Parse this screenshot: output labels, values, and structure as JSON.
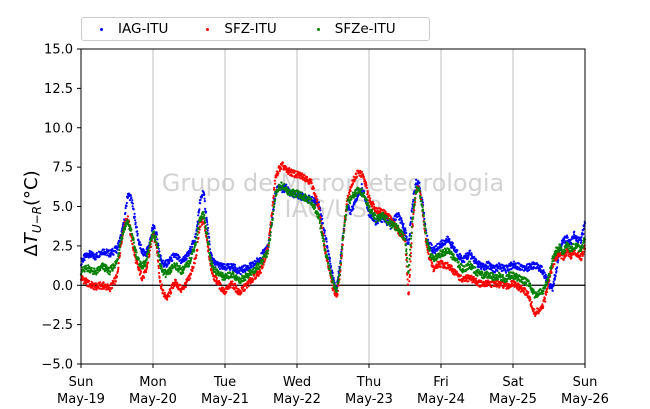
{
  "chart_data": {
    "type": "scatter",
    "title": "",
    "xlabel": "",
    "ylabel": "ΔT_{U−R}(°C)",
    "ylabel_parts": {
      "delta": "Δ",
      "t": "T",
      "sub": "U−R",
      "unit": "(°C)"
    },
    "ylim": [
      -5.0,
      15.0
    ],
    "yticks": [
      "−5.0",
      "−2.5",
      "0.0",
      "2.5",
      "5.0",
      "7.5",
      "10.0",
      "12.5",
      "15.0"
    ],
    "xlim": [
      "2019-05-19",
      "2019-05-26"
    ],
    "xticks": [
      {
        "day": "Sun",
        "date": "May-19"
      },
      {
        "day": "Mon",
        "date": "May-20"
      },
      {
        "day": "Tue",
        "date": "May-21"
      },
      {
        "day": "Wed",
        "date": "May-22"
      },
      {
        "day": "Thu",
        "date": "May-23"
      },
      {
        "day": "Fri",
        "date": "May-24"
      },
      {
        "day": "Sat",
        "date": "May-25"
      },
      {
        "day": "Sun",
        "date": "May-26"
      }
    ],
    "grid": "vertical",
    "zero_line": 0,
    "legend": "top-left, outside, 3 columns",
    "series": [
      {
        "name": "IAG-ITU",
        "color": "#0000ff",
        "x": [
          0.0,
          0.1,
          0.2,
          0.3,
          0.4,
          0.5,
          0.55,
          0.6,
          0.65,
          0.7,
          0.75,
          0.8,
          0.85,
          0.9,
          0.95,
          1.0,
          1.05,
          1.1,
          1.15,
          1.2,
          1.3,
          1.4,
          1.5,
          1.6,
          1.65,
          1.7,
          1.75,
          1.8,
          1.85,
          1.9,
          1.95,
          2.0,
          2.1,
          2.2,
          2.3,
          2.4,
          2.5,
          2.6,
          2.65,
          2.7,
          2.75,
          2.8,
          2.85,
          2.9,
          3.0,
          3.1,
          3.2,
          3.3,
          3.4,
          3.5,
          3.55,
          3.6,
          3.65,
          3.7,
          3.75,
          3.8,
          3.85,
          3.9,
          3.95,
          4.0,
          4.1,
          4.2,
          4.3,
          4.4,
          4.5,
          4.55,
          4.6,
          4.65,
          4.7,
          4.75,
          4.8,
          4.85,
          4.9,
          4.95,
          5.0,
          5.1,
          5.2,
          5.3,
          5.4,
          5.5,
          5.6,
          5.65,
          5.7,
          5.75,
          5.8,
          5.85,
          5.9,
          5.95,
          6.0,
          6.1,
          6.2,
          6.3,
          6.4,
          6.45,
          6.5,
          6.55,
          6.6,
          6.65,
          6.7,
          6.75,
          6.8,
          6.85,
          6.9,
          6.95,
          7.0
        ],
        "y": [
          1.5,
          2.0,
          1.8,
          2.2,
          2.0,
          2.3,
          3.0,
          4.0,
          5.8,
          5.5,
          4.2,
          2.8,
          2.1,
          2.0,
          2.6,
          3.7,
          3.2,
          1.8,
          1.3,
          1.4,
          1.9,
          1.5,
          2.0,
          3.2,
          5.2,
          6.0,
          4.0,
          2.0,
          1.4,
          1.3,
          1.2,
          1.1,
          1.2,
          0.9,
          1.1,
          1.3,
          1.8,
          2.5,
          4.0,
          5.8,
          6.3,
          6.0,
          6.2,
          5.9,
          5.7,
          5.6,
          5.4,
          5.2,
          3.0,
          0.5,
          -0.2,
          1.5,
          3.5,
          5.0,
          4.6,
          5.2,
          5.8,
          6.2,
          5.5,
          4.6,
          4.0,
          4.3,
          3.8,
          4.5,
          3.5,
          2.5,
          5.0,
          6.5,
          6.3,
          5.0,
          3.0,
          2.5,
          2.2,
          2.4,
          2.6,
          2.9,
          2.2,
          1.6,
          2.0,
          1.4,
          1.1,
          1.3,
          1.2,
          1.0,
          1.2,
          1.1,
          1.0,
          1.2,
          1.3,
          1.2,
          1.1,
          1.3,
          1.0,
          0.5,
          0.1,
          -0.2,
          1.0,
          2.4,
          2.8,
          3.0,
          2.6,
          3.2,
          2.8,
          2.9,
          4.0
        ]
      },
      {
        "name": "SFZ-ITU",
        "color": "#ff0000",
        "x": [
          0.0,
          0.1,
          0.2,
          0.3,
          0.4,
          0.5,
          0.55,
          0.6,
          0.65,
          0.7,
          0.75,
          0.8,
          0.85,
          0.9,
          0.95,
          1.0,
          1.05,
          1.1,
          1.15,
          1.2,
          1.3,
          1.4,
          1.5,
          1.6,
          1.65,
          1.7,
          1.75,
          1.8,
          1.85,
          1.9,
          1.95,
          2.0,
          2.1,
          2.2,
          2.3,
          2.4,
          2.5,
          2.6,
          2.65,
          2.7,
          2.75,
          2.8,
          2.85,
          2.9,
          3.0,
          3.1,
          3.2,
          3.3,
          3.4,
          3.5,
          3.55,
          3.6,
          3.65,
          3.7,
          3.75,
          3.8,
          3.85,
          3.9,
          3.95,
          4.0,
          4.1,
          4.2,
          4.3,
          4.4,
          4.5,
          4.55,
          4.6,
          4.65,
          4.7,
          4.75,
          4.8,
          4.85,
          4.9,
          4.95,
          5.0,
          5.1,
          5.2,
          5.3,
          5.4,
          5.5,
          5.6,
          5.65,
          5.7,
          5.75,
          5.8,
          5.85,
          5.9,
          5.95,
          6.0,
          6.1,
          6.2,
          6.3,
          6.4,
          6.45,
          6.5,
          6.55,
          6.6,
          6.65,
          6.7,
          6.75,
          6.8,
          6.85,
          6.9,
          6.95,
          7.0
        ],
        "y": [
          0.5,
          0.1,
          -0.1,
          0.0,
          -0.2,
          0.5,
          2.5,
          3.8,
          4.3,
          3.0,
          1.8,
          1.0,
          0.5,
          0.8,
          2.0,
          3.4,
          2.5,
          0.2,
          -0.6,
          -0.8,
          0.2,
          -0.3,
          0.4,
          1.8,
          3.8,
          4.2,
          2.8,
          1.2,
          0.5,
          0.2,
          -0.2,
          -0.4,
          0.1,
          -0.5,
          0.0,
          0.5,
          1.0,
          2.4,
          4.5,
          6.8,
          7.4,
          7.6,
          7.3,
          7.2,
          7.0,
          6.9,
          6.5,
          5.0,
          2.0,
          -0.2,
          -0.8,
          0.8,
          3.5,
          5.5,
          6.3,
          6.8,
          7.2,
          7.0,
          6.5,
          5.5,
          4.8,
          4.6,
          4.2,
          3.5,
          3.0,
          -0.8,
          3.5,
          6.0,
          6.2,
          4.5,
          2.5,
          1.6,
          1.0,
          1.3,
          1.4,
          1.2,
          0.8,
          0.3,
          0.5,
          0.2,
          0.0,
          0.2,
          0.1,
          0.2,
          0.0,
          0.1,
          -0.1,
          0.0,
          0.1,
          -0.2,
          -0.5,
          -1.8,
          -1.5,
          -0.8,
          0.5,
          1.2,
          1.8,
          2.0,
          1.8,
          2.2,
          1.9,
          2.1,
          2.0,
          1.8,
          2.5
        ]
      },
      {
        "name": "SFZe-ITU",
        "color": "#008000",
        "x": [
          0.0,
          0.1,
          0.2,
          0.3,
          0.4,
          0.5,
          0.55,
          0.6,
          0.65,
          0.7,
          0.75,
          0.8,
          0.85,
          0.9,
          0.95,
          1.0,
          1.05,
          1.1,
          1.15,
          1.2,
          1.3,
          1.4,
          1.5,
          1.6,
          1.65,
          1.7,
          1.75,
          1.8,
          1.85,
          1.9,
          1.95,
          2.0,
          2.1,
          2.2,
          2.3,
          2.4,
          2.5,
          2.6,
          2.65,
          2.7,
          2.75,
          2.8,
          2.85,
          2.9,
          3.0,
          3.1,
          3.2,
          3.3,
          3.4,
          3.5,
          3.55,
          3.6,
          3.65,
          3.7,
          3.75,
          3.8,
          3.85,
          3.9,
          3.95,
          4.0,
          4.1,
          4.2,
          4.3,
          4.4,
          4.5,
          4.55,
          4.6,
          4.65,
          4.7,
          4.75,
          4.8,
          4.85,
          4.9,
          4.95,
          5.0,
          5.1,
          5.2,
          5.3,
          5.4,
          5.5,
          5.6,
          5.65,
          5.7,
          5.75,
          5.8,
          5.85,
          5.9,
          5.95,
          6.0,
          6.1,
          6.2,
          6.3,
          6.4,
          6.45,
          6.5,
          6.55,
          6.6,
          6.65,
          6.7,
          6.75,
          6.8,
          6.85,
          6.9,
          6.95,
          7.0
        ],
        "y": [
          0.9,
          1.1,
          0.8,
          1.2,
          0.9,
          1.5,
          2.8,
          3.6,
          4.0,
          3.4,
          2.3,
          1.5,
          1.2,
          1.4,
          2.4,
          3.4,
          2.8,
          1.2,
          0.8,
          0.7,
          1.3,
          0.9,
          1.4,
          2.8,
          4.2,
          4.6,
          3.2,
          1.6,
          1.0,
          0.8,
          0.6,
          0.5,
          0.7,
          0.3,
          0.6,
          0.9,
          1.4,
          2.2,
          3.8,
          5.8,
          6.2,
          6.4,
          6.0,
          5.9,
          5.8,
          5.6,
          5.3,
          4.4,
          2.0,
          0.2,
          -0.4,
          1.0,
          3.6,
          5.2,
          5.5,
          5.8,
          6.0,
          5.9,
          5.5,
          4.9,
          4.2,
          4.4,
          3.9,
          3.6,
          3.0,
          0.8,
          4.0,
          6.0,
          6.1,
          4.6,
          2.8,
          2.0,
          1.7,
          1.9,
          2.0,
          2.2,
          1.6,
          1.0,
          1.3,
          0.8,
          0.6,
          0.7,
          0.6,
          0.5,
          0.6,
          0.5,
          0.4,
          0.6,
          0.6,
          0.4,
          0.2,
          -0.6,
          -0.4,
          -0.1,
          0.6,
          1.6,
          2.2,
          2.4,
          2.1,
          2.6,
          2.3,
          2.5,
          2.4,
          2.3,
          3.0
        ]
      }
    ],
    "watermark": {
      "line1": "Grupo de Micrometeorologia",
      "line2": "IAG/USP"
    }
  }
}
